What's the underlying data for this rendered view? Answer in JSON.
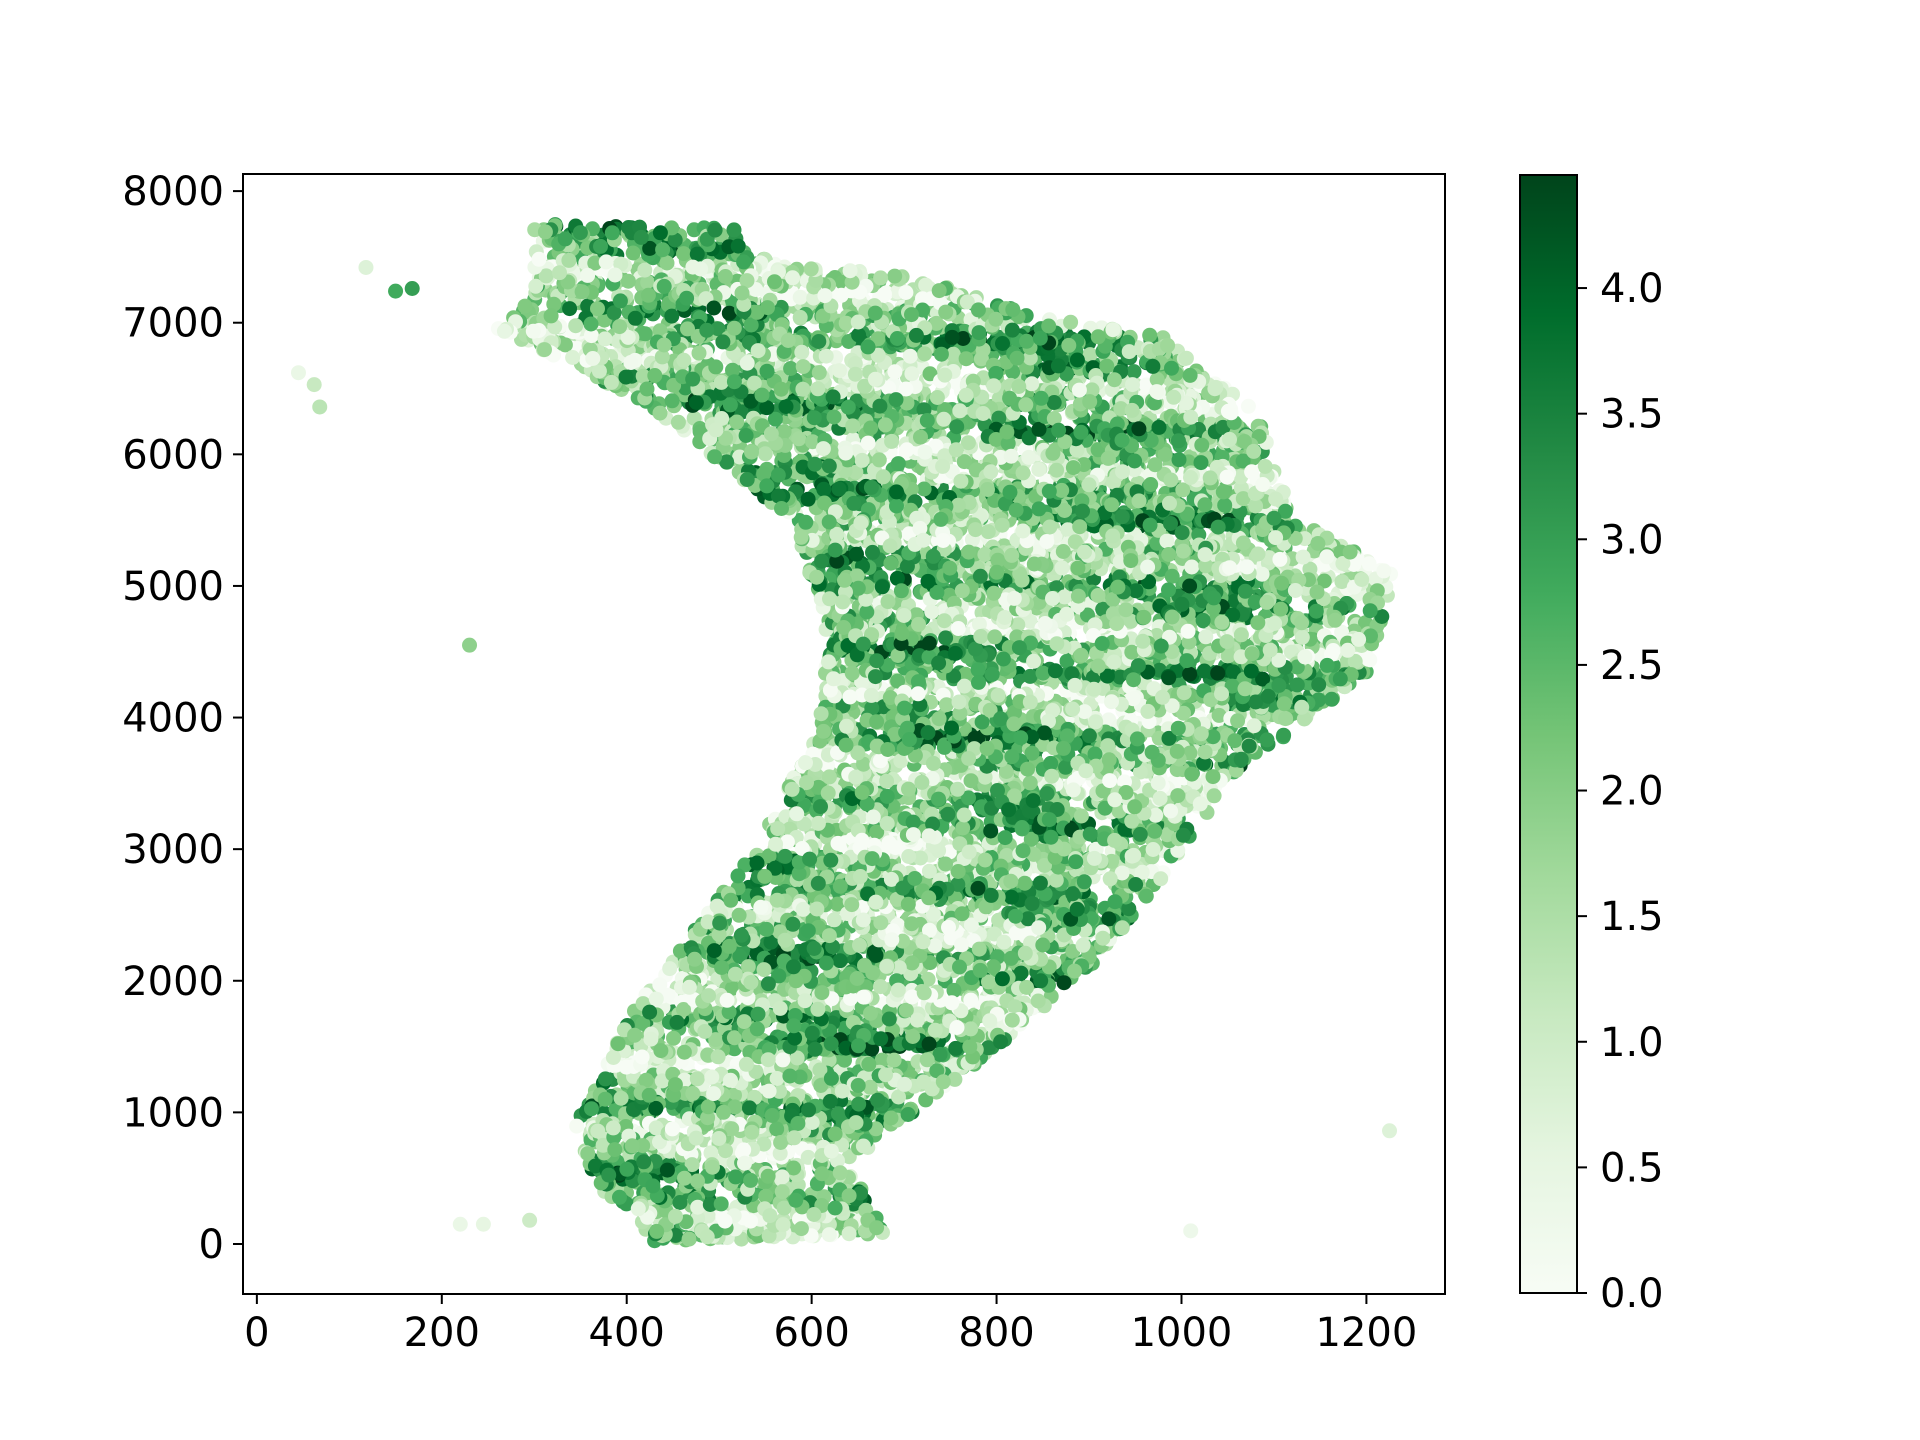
{
  "chart_data": {
    "type": "scatter",
    "title": "",
    "xlabel": "",
    "ylabel": "",
    "xlim": [
      -15,
      1285
    ],
    "ylim": [
      -380,
      8130
    ],
    "xticks": [
      0,
      200,
      400,
      600,
      800,
      1000,
      1200
    ],
    "yticks": [
      0,
      1000,
      2000,
      3000,
      4000,
      5000,
      6000,
      7000,
      8000
    ],
    "grid": false,
    "legend": "none",
    "colormap": {
      "name": "Greens",
      "min": 0.0,
      "max": 4.45,
      "stops": [
        "#f7fcf5",
        "#e5f5e0",
        "#c7e9c0",
        "#a1d99b",
        "#74c476",
        "#41ab5d",
        "#238b45",
        "#006d2c",
        "#00441b"
      ],
      "ticks": [
        0.0,
        0.5,
        1.0,
        1.5,
        2.0,
        2.5,
        3.0,
        3.5,
        4.0
      ],
      "tick_labels": [
        "0.0",
        "0.5",
        "1.0",
        "1.5",
        "2.0",
        "2.5",
        "3.0",
        "3.5",
        "4.0"
      ]
    },
    "outlier_points": [
      {
        "x": 118,
        "y": 7420,
        "v": 0.7
      },
      {
        "x": 150,
        "y": 7240,
        "v": 2.8
      },
      {
        "x": 168,
        "y": 7260,
        "v": 3.0
      },
      {
        "x": 45,
        "y": 6620,
        "v": 0.4
      },
      {
        "x": 62,
        "y": 6530,
        "v": 1.1
      },
      {
        "x": 68,
        "y": 6360,
        "v": 1.3
      },
      {
        "x": 230,
        "y": 4550,
        "v": 1.9
      },
      {
        "x": 220,
        "y": 150,
        "v": 0.4
      },
      {
        "x": 245,
        "y": 150,
        "v": 0.5
      },
      {
        "x": 295,
        "y": 180,
        "v": 1.0
      },
      {
        "x": 1010,
        "y": 100,
        "v": 0.3
      },
      {
        "x": 1225,
        "y": 860,
        "v": 0.7
      }
    ],
    "shape_outline_xy": [
      [
        300,
        7750
      ],
      [
        520,
        7720
      ],
      [
        530,
        7500
      ],
      [
        720,
        7330
      ],
      [
        840,
        7050
      ],
      [
        980,
        6890
      ],
      [
        1080,
        6330
      ],
      [
        1125,
        5500
      ],
      [
        1230,
        5100
      ],
      [
        1200,
        4300
      ],
      [
        1060,
        3600
      ],
      [
        960,
        2600
      ],
      [
        900,
        2100
      ],
      [
        800,
        1500
      ],
      [
        710,
        1000
      ],
      [
        640,
        600
      ],
      [
        680,
        60
      ],
      [
        430,
        20
      ],
      [
        360,
        500
      ],
      [
        345,
        900
      ],
      [
        400,
        1700
      ],
      [
        540,
        3000
      ],
      [
        600,
        3800
      ],
      [
        620,
        4550
      ],
      [
        580,
        5500
      ],
      [
        420,
        6400
      ],
      [
        260,
        6950
      ],
      [
        300,
        7200
      ]
    ]
  }
}
